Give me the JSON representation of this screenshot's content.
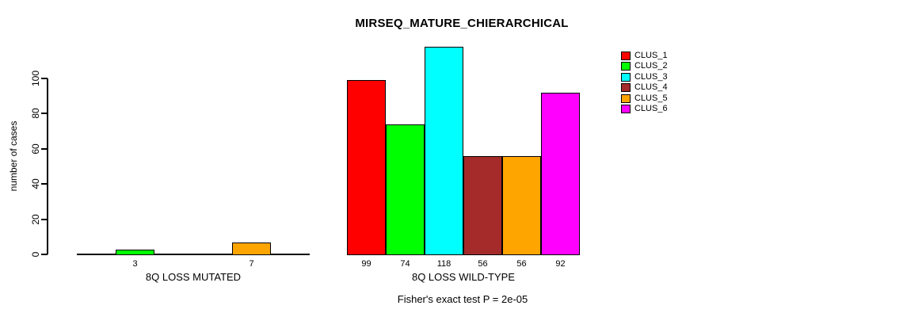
{
  "title": "MIRSEQ_MATURE_CHIERARCHICAL",
  "footer": "Fisher's exact test P = 2e-05",
  "y_axis": {
    "label": "number of cases",
    "ticks": [
      0,
      20,
      40,
      60,
      80,
      100
    ]
  },
  "legend": {
    "position": "right",
    "items": [
      {
        "label": "CLUS_1",
        "color": "#FF0000"
      },
      {
        "label": "CLUS_2",
        "color": "#00FF00"
      },
      {
        "label": "CLUS_3",
        "color": "#00FFFF"
      },
      {
        "label": "CLUS_4",
        "color": "#A52A2A"
      },
      {
        "label": "CLUS_5",
        "color": "#FFA500"
      },
      {
        "label": "CLUS_6",
        "color": "#FF00FF"
      }
    ]
  },
  "chart_data": {
    "type": "bar",
    "title": "MIRSEQ_MATURE_CHIERARCHICAL",
    "xlabel": "",
    "ylabel": "number of cases",
    "ylim": [
      0,
      100
    ],
    "yticks": [
      0,
      20,
      40,
      60,
      80,
      100
    ],
    "grid": false,
    "legend_position": "right",
    "bar_value_labels": "shown under each nonzero bar",
    "categories": [
      "8Q LOSS MUTATED",
      "8Q LOSS WILD-TYPE"
    ],
    "series": [
      {
        "name": "CLUS_1",
        "color": "#FF0000",
        "values": [
          0,
          99
        ]
      },
      {
        "name": "CLUS_2",
        "color": "#00FF00",
        "values": [
          3,
          74
        ]
      },
      {
        "name": "CLUS_3",
        "color": "#00FFFF",
        "values": [
          0,
          118
        ]
      },
      {
        "name": "CLUS_4",
        "color": "#A52A2A",
        "values": [
          0,
          56
        ]
      },
      {
        "name": "CLUS_5",
        "color": "#FFA500",
        "values": [
          7,
          56
        ]
      },
      {
        "name": "CLUS_6",
        "color": "#FF00FF",
        "values": [
          0,
          92
        ]
      }
    ],
    "annotation": "Fisher's exact test P = 2e-05"
  }
}
